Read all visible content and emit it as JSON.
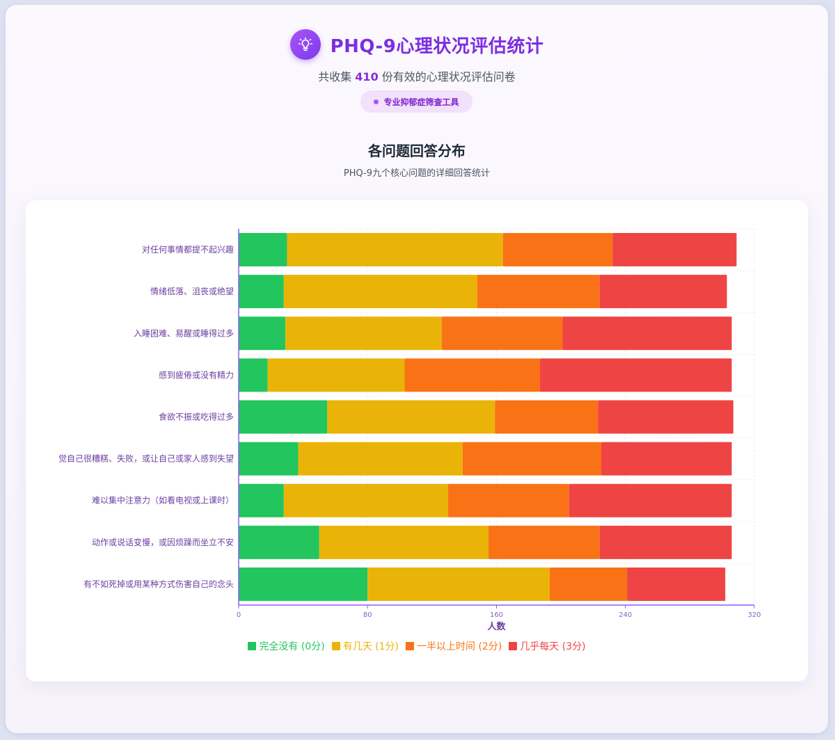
{
  "header": {
    "title": "PHQ-9心理状况评估统计",
    "subtitle_prefix": "共收集",
    "subtitle_count": "410",
    "subtitle_suffix": "份有效的心理状况评估问卷",
    "badge": "专业抑郁症筛查工具",
    "icon": "lightbulb-icon"
  },
  "section": {
    "title": "各问题回答分布",
    "subtitle": "PHQ-9九个核心问题的详细回答统计"
  },
  "chart_data": {
    "type": "bar",
    "orientation": "horizontal",
    "stacked": true,
    "categories": [
      "对任何事情都提不起兴趣",
      "情绪低落、沮丧或绝望",
      "入睡困难、易醒或睡得过多",
      "感到疲倦或没有精力",
      "食欲不振或吃得过多",
      "觉自己很糟糕、失败，或让自己或家人感到失望",
      "难以集中注意力（如看电视或上课时）",
      "动作或说话变慢，或因烦躁而坐立不安",
      "有不如死掉或用某种方式伤害自己的念头"
    ],
    "series": [
      {
        "name": "完全没有 (0分)",
        "color": "#22c55e",
        "values": [
          30,
          28,
          29,
          18,
          55,
          37,
          28,
          50,
          80
        ]
      },
      {
        "name": "有几天 (1分)",
        "color": "#eab308",
        "values": [
          134,
          120,
          97,
          85,
          104,
          102,
          102,
          105,
          113
        ]
      },
      {
        "name": "一半以上时间 (2分)",
        "color": "#f97316",
        "values": [
          68,
          76,
          75,
          84,
          64,
          86,
          75,
          69,
          48
        ]
      },
      {
        "name": "几乎每天 (3分)",
        "color": "#ef4444",
        "values": [
          77,
          79,
          105,
          119,
          84,
          81,
          101,
          82,
          61
        ]
      }
    ],
    "xlabel": "人数",
    "ylabel": "",
    "xlim": [
      0,
      320
    ],
    "xticks": [
      0,
      80,
      160,
      240,
      320
    ],
    "grid": true,
    "legend_position": "bottom"
  }
}
